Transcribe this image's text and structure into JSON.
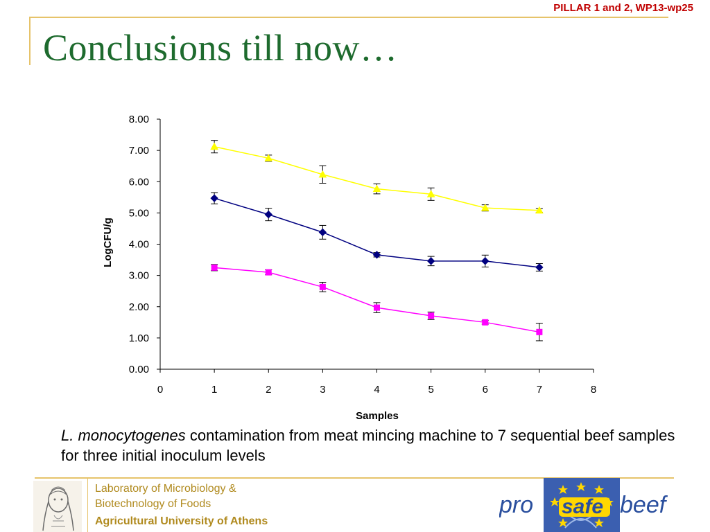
{
  "header": {
    "tag": "PILLAR 1 and 2, WP13-wp25",
    "title": "Conclusions till now…"
  },
  "caption": {
    "species": "L. monocytogenes",
    "text": " contamination from meat mincing machine to 7 sequential beef samples for three initial inoculum levels"
  },
  "footer": {
    "lab_line1": "Laboratory of Microbiology &",
    "lab_line2": "Biotechnology of Foods",
    "university": "Agricultural University of Athens",
    "logo_text_pro": "pro",
    "logo_text_safe": "safe",
    "logo_text_beef": "beef"
  },
  "colors": {
    "title": "#1e6b2e",
    "tag": "#c00000",
    "accent": "#e6c36a",
    "footer_text": "#b08a1e"
  },
  "chart_data": {
    "type": "line",
    "xlabel": "Samples",
    "ylabel": "LogCFU/g",
    "xlim": [
      0,
      8
    ],
    "ylim": [
      0,
      8
    ],
    "xticks": [
      "0",
      "1",
      "2",
      "3",
      "4",
      "5",
      "6",
      "7",
      "8"
    ],
    "yticks": [
      "0.00",
      "1.00",
      "2.00",
      "3.00",
      "4.00",
      "5.00",
      "6.00",
      "7.00",
      "8.00"
    ],
    "x": [
      1,
      2,
      3,
      4,
      5,
      6,
      7
    ],
    "series": [
      {
        "color": "#ffff00",
        "marker": "triangle",
        "values": [
          7.12,
          6.75,
          6.23,
          5.77,
          5.6,
          5.16,
          5.08
        ],
        "errors": [
          0.2,
          0.1,
          0.28,
          0.16,
          0.2,
          0.1,
          0.06
        ]
      },
      {
        "color": "#000080",
        "marker": "diamond",
        "values": [
          5.47,
          4.95,
          4.38,
          3.66,
          3.46,
          3.46,
          3.26
        ],
        "errors": [
          0.18,
          0.2,
          0.22,
          0.07,
          0.15,
          0.19,
          0.12
        ]
      },
      {
        "color": "#ff00ff",
        "marker": "square",
        "values": [
          3.25,
          3.1,
          2.63,
          1.97,
          1.71,
          1.5,
          1.19
        ],
        "errors": [
          0.1,
          0.08,
          0.15,
          0.16,
          0.12,
          0.06,
          0.28
        ]
      }
    ]
  }
}
